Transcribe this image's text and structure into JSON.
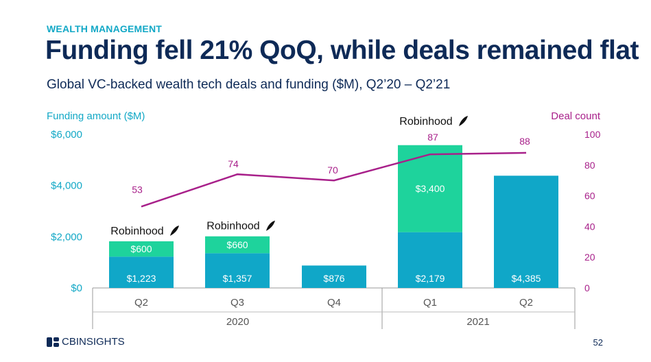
{
  "header": {
    "kicker": "WEALTH MANAGEMENT",
    "title": "Funding fell 21% QoQ, while deals remained flat",
    "subtitle": "Global VC-backed wealth tech deals and funding ($M), Q2’20 – Q2’21"
  },
  "footer": {
    "brand": "CBINSIGHTS",
    "page": "52"
  },
  "colors": {
    "base": "#10A7C8",
    "robinhood": "#1ED39C",
    "deals": "#A8208A",
    "title": "#0E2A57",
    "axis": "#12A8C6"
  },
  "chart_data": {
    "type": "bar",
    "title": "",
    "categories": [
      "Q2",
      "Q3",
      "Q4",
      "Q1",
      "Q2"
    ],
    "groups": [
      {
        "label": "2020",
        "categories": [
          0,
          1,
          2
        ]
      },
      {
        "label": "2021",
        "categories": [
          3,
          4
        ]
      }
    ],
    "y_left": {
      "label": "Funding amount ($M)",
      "ticks": [
        "$0",
        "$2,000",
        "$4,000",
        "$6,000"
      ],
      "tick_values": [
        0,
        2000,
        4000,
        6000
      ],
      "range": [
        0,
        6000
      ]
    },
    "y_right": {
      "label": "Deal count",
      "ticks": [
        "0",
        "20",
        "40",
        "60",
        "80",
        "100"
      ],
      "tick_values": [
        0,
        20,
        40,
        60,
        80,
        100
      ],
      "range": [
        0,
        100
      ]
    },
    "series": [
      {
        "values": [
          1223,
          1357,
          876,
          2179,
          4385
        ],
        "labels": [
          "$1,223",
          "$1,357",
          "$876",
          "$2,179",
          "$4,385"
        ]
      },
      {
        "values": [
          600,
          660,
          0,
          3400,
          0
        ],
        "labels": [
          "$600",
          "$660",
          "",
          "$3,400",
          ""
        ]
      },
      {
        "type": "line",
        "values": [
          53,
          74,
          70,
          87,
          88
        ],
        "labels": [
          "53",
          "74",
          "70",
          "87",
          "88"
        ]
      }
    ],
    "annotations": [
      {
        "text": "Robinhood",
        "category": 0
      },
      {
        "text": "Robinhood",
        "category": 1
      },
      {
        "text": "Robinhood",
        "category": 3
      }
    ]
  }
}
